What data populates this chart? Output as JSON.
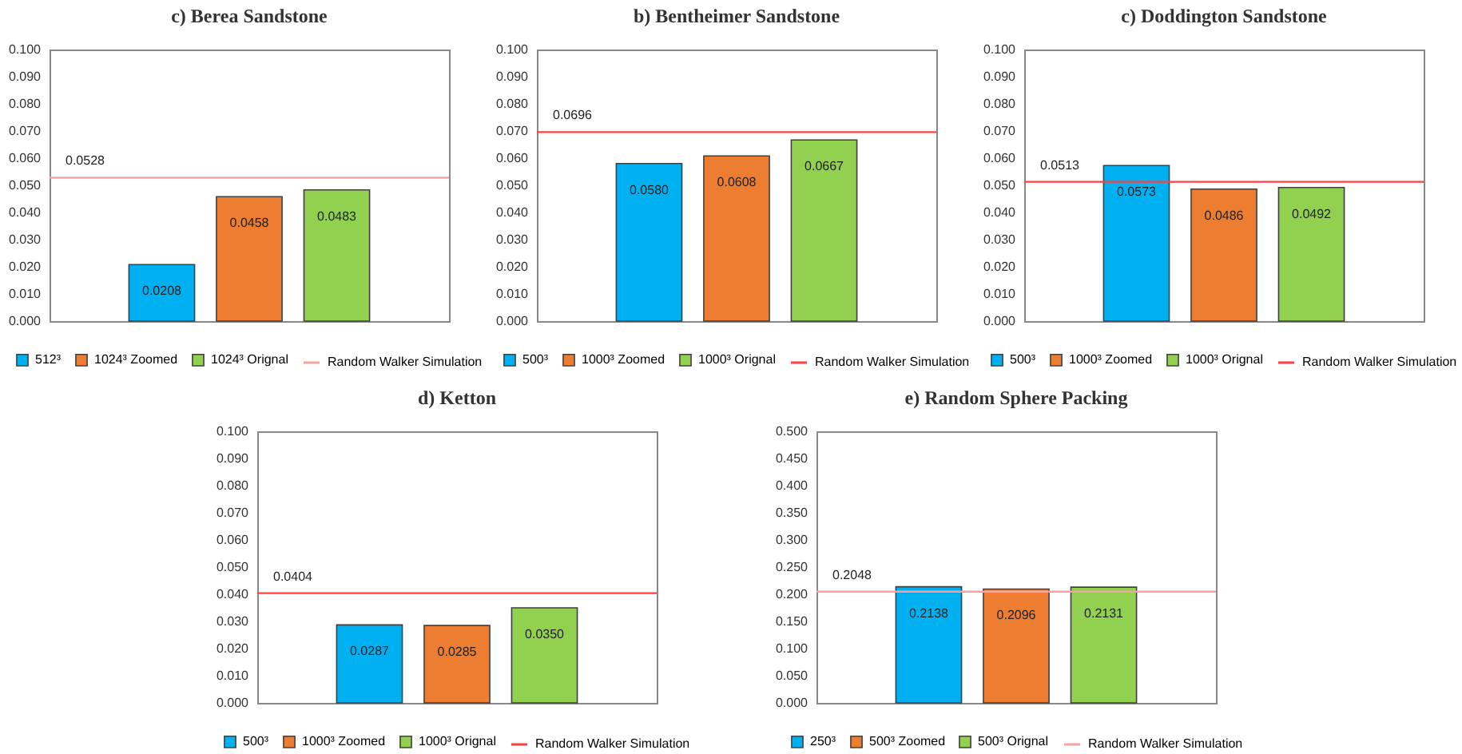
{
  "chart_data": [
    {
      "type": "bar",
      "title": "c) Berea Sandstone",
      "categories": [
        null
      ],
      "series": [
        {
          "name": "512³",
          "color": "#00b0f0",
          "values": [
            0.0208
          ],
          "value_labels": [
            "0.0208"
          ]
        },
        {
          "name": "1024³ Zoomed",
          "color": "#ed7d31",
          "values": [
            0.0458
          ],
          "value_labels": [
            "0.0458"
          ]
        },
        {
          "name": "1024³ Orignal",
          "color": "#92d050",
          "values": [
            0.0483
          ],
          "value_labels": [
            "0.0483"
          ]
        }
      ],
      "ylim": [
        0,
        0.1
      ],
      "yticks": [
        {
          "value": 0,
          "label": "0.000"
        },
        {
          "value": 0.01,
          "label": "0.010"
        },
        {
          "value": 0.02,
          "label": "0.020"
        },
        {
          "value": 0.03,
          "label": "0.030"
        },
        {
          "value": 0.04,
          "label": "0.040"
        },
        {
          "value": 0.05,
          "label": "0.050"
        },
        {
          "value": 0.06,
          "label": "0.060"
        },
        {
          "value": 0.07,
          "label": "0.070"
        },
        {
          "value": 0.08,
          "label": "0.080"
        },
        {
          "value": 0.09,
          "label": "0.090"
        },
        {
          "value": 0.1,
          "label": "0.100"
        }
      ],
      "ref_lines": [
        {
          "axis": "y",
          "value": 0.0528,
          "label": "Random Walker Simulation",
          "color": "#f4a3a3"
        }
      ],
      "annotations": [
        {
          "text": "0.0528",
          "y": 0.0528
        }
      ],
      "legend": "bottom"
    },
    {
      "type": "bar",
      "title": "b) Bentheimer Sandstone",
      "categories": [
        null
      ],
      "series": [
        {
          "name": "500³",
          "color": "#00b0f0",
          "values": [
            0.058
          ],
          "value_labels": [
            "0.0580"
          ]
        },
        {
          "name": "1000³ Zoomed",
          "color": "#ed7d31",
          "values": [
            0.0608
          ],
          "value_labels": [
            "0.0608"
          ]
        },
        {
          "name": "1000³ Orignal",
          "color": "#92d050",
          "values": [
            0.0667
          ],
          "value_labels": [
            "0.0667"
          ]
        }
      ],
      "ylim": [
        0,
        0.1
      ],
      "yticks": [
        {
          "value": 0,
          "label": "0.000"
        },
        {
          "value": 0.01,
          "label": "0.010"
        },
        {
          "value": 0.02,
          "label": "0.020"
        },
        {
          "value": 0.03,
          "label": "0.030"
        },
        {
          "value": 0.04,
          "label": "0.040"
        },
        {
          "value": 0.05,
          "label": "0.050"
        },
        {
          "value": 0.06,
          "label": "0.060"
        },
        {
          "value": 0.07,
          "label": "0.070"
        },
        {
          "value": 0.08,
          "label": "0.080"
        },
        {
          "value": 0.09,
          "label": "0.090"
        },
        {
          "value": 0.1,
          "label": "0.100"
        }
      ],
      "ref_lines": [
        {
          "axis": "y",
          "value": 0.0696,
          "label": "Random Walker Simulation",
          "color": "#ff4040"
        }
      ],
      "annotations": [
        {
          "text": "0.0696",
          "y": 0.0696
        }
      ],
      "legend": "bottom"
    },
    {
      "type": "bar",
      "title": "c) Doddington Sandstone",
      "categories": [
        null
      ],
      "series": [
        {
          "name": "500³",
          "color": "#00b0f0",
          "values": [
            0.0573
          ],
          "value_labels": [
            "0.0573"
          ]
        },
        {
          "name": "1000³ Zoomed",
          "color": "#ed7d31",
          "values": [
            0.0486
          ],
          "value_labels": [
            "0.0486"
          ]
        },
        {
          "name": "1000³ Orignal",
          "color": "#92d050",
          "values": [
            0.0492
          ],
          "value_labels": [
            "0.0492"
          ]
        }
      ],
      "ylim": [
        0,
        0.1
      ],
      "yticks": [
        {
          "value": 0,
          "label": "0.000"
        },
        {
          "value": 0.01,
          "label": "0.010"
        },
        {
          "value": 0.02,
          "label": "0.020"
        },
        {
          "value": 0.03,
          "label": "0.030"
        },
        {
          "value": 0.04,
          "label": "0.040"
        },
        {
          "value": 0.05,
          "label": "0.050"
        },
        {
          "value": 0.06,
          "label": "0.060"
        },
        {
          "value": 0.07,
          "label": "0.070"
        },
        {
          "value": 0.08,
          "label": "0.080"
        },
        {
          "value": 0.09,
          "label": "0.090"
        },
        {
          "value": 0.1,
          "label": "0.100"
        }
      ],
      "ref_lines": [
        {
          "axis": "y",
          "value": 0.0513,
          "label": "Random Walker Simulation",
          "color": "#ff4040"
        }
      ],
      "annotations": [
        {
          "text": "0.0513",
          "y": 0.0513
        }
      ],
      "legend": "bottom"
    },
    {
      "type": "bar",
      "title": "d) Ketton",
      "categories": [
        null
      ],
      "series": [
        {
          "name": "500³",
          "color": "#00b0f0",
          "values": [
            0.0287
          ],
          "value_labels": [
            "0.0287"
          ]
        },
        {
          "name": "1000³ Zoomed",
          "color": "#ed7d31",
          "values": [
            0.0285
          ],
          "value_labels": [
            "0.0285"
          ]
        },
        {
          "name": "1000³ Orignal",
          "color": "#92d050",
          "values": [
            0.035
          ],
          "value_labels": [
            "0.0350"
          ]
        }
      ],
      "ylim": [
        0,
        0.1
      ],
      "yticks": [
        {
          "value": 0,
          "label": "0.000"
        },
        {
          "value": 0.01,
          "label": "0.010"
        },
        {
          "value": 0.02,
          "label": "0.020"
        },
        {
          "value": 0.03,
          "label": "0.030"
        },
        {
          "value": 0.04,
          "label": "0.040"
        },
        {
          "value": 0.05,
          "label": "0.050"
        },
        {
          "value": 0.06,
          "label": "0.060"
        },
        {
          "value": 0.07,
          "label": "0.070"
        },
        {
          "value": 0.08,
          "label": "0.080"
        },
        {
          "value": 0.09,
          "label": "0.090"
        },
        {
          "value": 0.1,
          "label": "0.100"
        }
      ],
      "ref_lines": [
        {
          "axis": "y",
          "value": 0.0404,
          "label": "Random Walker Simulation",
          "color": "#ff4040"
        }
      ],
      "annotations": [
        {
          "text": "0.0404",
          "y": 0.0404
        }
      ],
      "legend": "bottom"
    },
    {
      "type": "bar",
      "title": "e) Random Sphere Packing",
      "categories": [
        null
      ],
      "series": [
        {
          "name": "250³",
          "color": "#00b0f0",
          "values": [
            0.2138
          ],
          "value_labels": [
            "0.2138"
          ]
        },
        {
          "name": "500³ Zoomed",
          "color": "#ed7d31",
          "values": [
            0.2096
          ],
          "value_labels": [
            "0.2096"
          ]
        },
        {
          "name": "500³ Orignal",
          "color": "#92d050",
          "values": [
            0.2131
          ],
          "value_labels": [
            "0.2131"
          ]
        }
      ],
      "ylim": [
        0,
        0.5
      ],
      "yticks": [
        {
          "value": 0,
          "label": "0.000"
        },
        {
          "value": 0.05,
          "label": "0.050"
        },
        {
          "value": 0.1,
          "label": "0.100"
        },
        {
          "value": 0.15,
          "label": "0.150"
        },
        {
          "value": 0.2,
          "label": "0.200"
        },
        {
          "value": 0.25,
          "label": "0.250"
        },
        {
          "value": 0.3,
          "label": "0.300"
        },
        {
          "value": 0.35,
          "label": "0.350"
        },
        {
          "value": 0.4,
          "label": "0.400"
        },
        {
          "value": 0.45,
          "label": "0.450"
        },
        {
          "value": 0.5,
          "label": "0.500"
        }
      ],
      "ref_lines": [
        {
          "axis": "y",
          "value": 0.2048,
          "label": "Random Walker Simulation",
          "color": "#f4a3a3"
        }
      ],
      "annotations": [
        {
          "text": "0.2048",
          "y": 0.2048
        }
      ],
      "legend": "bottom"
    }
  ]
}
